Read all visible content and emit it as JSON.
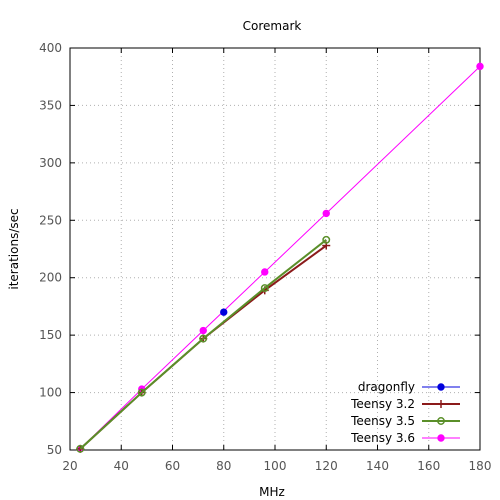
{
  "chart_data": {
    "type": "line",
    "title": "Coremark",
    "xlabel": "MHz",
    "ylabel": "iterations/sec",
    "xlim": [
      20,
      180
    ],
    "ylim": [
      50,
      400
    ],
    "xticks": [
      20,
      40,
      60,
      80,
      100,
      120,
      140,
      160,
      180
    ],
    "yticks": [
      50,
      100,
      150,
      200,
      250,
      300,
      350,
      400
    ],
    "grid": true,
    "legend_position": "bottom-right",
    "series": [
      {
        "name": "dragonfly",
        "color": "#0000dd",
        "marker": "filled-circle",
        "x": [
          80
        ],
        "y": [
          170
        ]
      },
      {
        "name": "Teensy 3.2",
        "color": "#8b1a1a",
        "marker": "plus",
        "x": [
          24,
          48,
          72,
          96,
          120
        ],
        "y": [
          51,
          100,
          147,
          189,
          228
        ]
      },
      {
        "name": "Teensy 3.5",
        "color": "#5a8f29",
        "marker": "open-circle",
        "x": [
          24,
          48,
          72,
          96,
          120
        ],
        "y": [
          51,
          100,
          147,
          191,
          233
        ]
      },
      {
        "name": "Teensy 3.6",
        "color": "#ff00ff",
        "marker": "filled-circle",
        "x": [
          24,
          48,
          72,
          96,
          120,
          180
        ],
        "y": [
          51,
          103,
          154,
          205,
          256,
          384
        ]
      }
    ]
  }
}
